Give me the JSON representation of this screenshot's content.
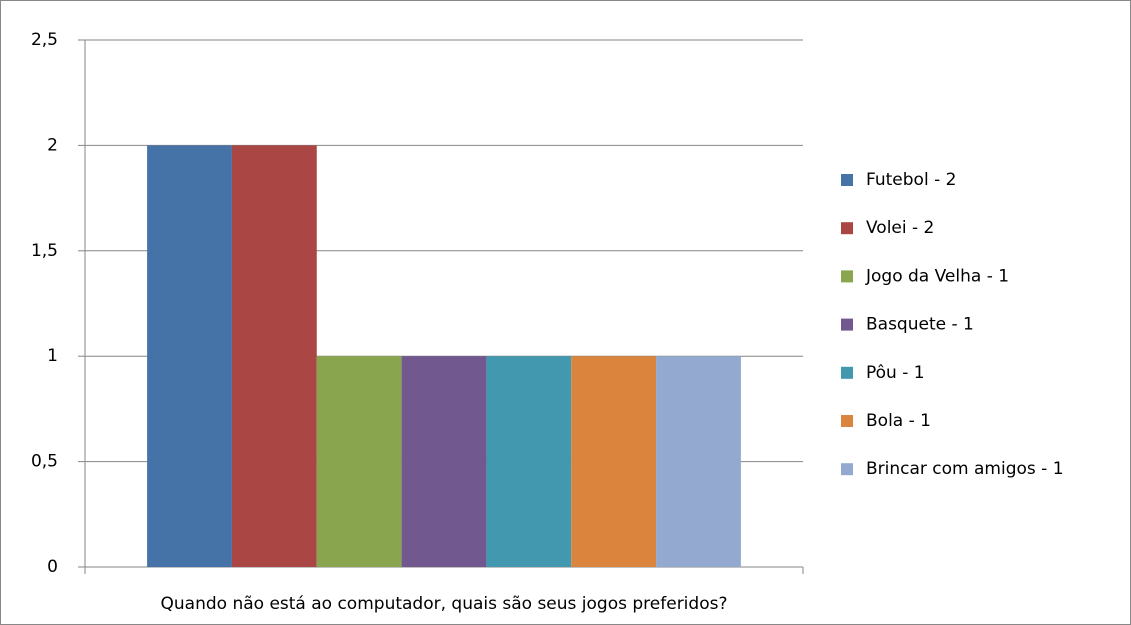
{
  "chart_data": {
    "type": "bar",
    "categories": [
      "Quando não está ao computador, quais são seus jogos preferidos?"
    ],
    "series": [
      {
        "name": "Futebol - 2",
        "color": "#4572a7",
        "values": [
          2
        ]
      },
      {
        "name": "Volei - 2",
        "color": "#aa4643",
        "values": [
          2
        ]
      },
      {
        "name": "Jogo da Velha - 1",
        "color": "#89a54e",
        "values": [
          1
        ]
      },
      {
        "name": "Basquete - 1",
        "color": "#71588f",
        "values": [
          1
        ]
      },
      {
        "name": "Pôu - 1",
        "color": "#4198af",
        "values": [
          1
        ]
      },
      {
        "name": "Bola - 1",
        "color": "#db843d",
        "values": [
          1
        ]
      },
      {
        "name": "Brincar com amigos - 1",
        "color": "#93a9cf",
        "values": [
          1
        ]
      }
    ],
    "ylim": [
      0,
      2.5
    ],
    "yticks": [
      0,
      {
        "value": 0.5,
        "label": "0,5"
      },
      1,
      {
        "value": 1.5,
        "label": "1,5"
      },
      2,
      {
        "value": 2.5,
        "label": "2,5"
      }
    ],
    "grid": true,
    "legend": "right"
  }
}
